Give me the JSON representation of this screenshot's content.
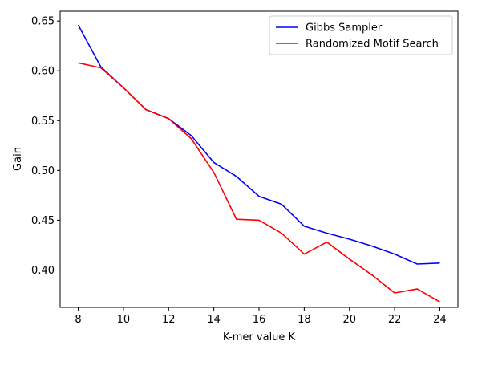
{
  "chart_data": {
    "type": "line",
    "title": "",
    "xlabel": "K-mer value K",
    "ylabel": "Gain",
    "xlim": [
      7.2,
      24.8
    ],
    "ylim": [
      0.3625,
      0.6598
    ],
    "xticks": [
      8,
      10,
      12,
      14,
      16,
      18,
      20,
      22,
      24
    ],
    "yticks": [
      0.4,
      0.45,
      0.5,
      0.55,
      0.6,
      0.65
    ],
    "ytick_labels": [
      "0.40",
      "0.45",
      "0.50",
      "0.55",
      "0.60",
      "0.65"
    ],
    "grid": false,
    "legend_position": "top-right",
    "x": [
      8,
      9,
      10,
      11,
      12,
      13,
      14,
      15,
      16,
      17,
      18,
      19,
      20,
      21,
      22,
      23,
      24
    ],
    "series": [
      {
        "name": "Gibbs Sampler",
        "color": "#0000ff",
        "values": [
          0.646,
          0.604,
          0.583,
          0.561,
          0.552,
          0.535,
          0.508,
          0.494,
          0.474,
          0.466,
          0.444,
          0.437,
          0.431,
          0.424,
          0.416,
          0.406,
          0.407
        ]
      },
      {
        "name": "Randomized Motif Search",
        "color": "#ff0000",
        "values": [
          0.608,
          0.603,
          0.583,
          0.561,
          0.552,
          0.532,
          0.498,
          0.451,
          0.45,
          0.437,
          0.416,
          0.428,
          0.411,
          0.395,
          0.377,
          0.381,
          0.368
        ]
      }
    ]
  }
}
